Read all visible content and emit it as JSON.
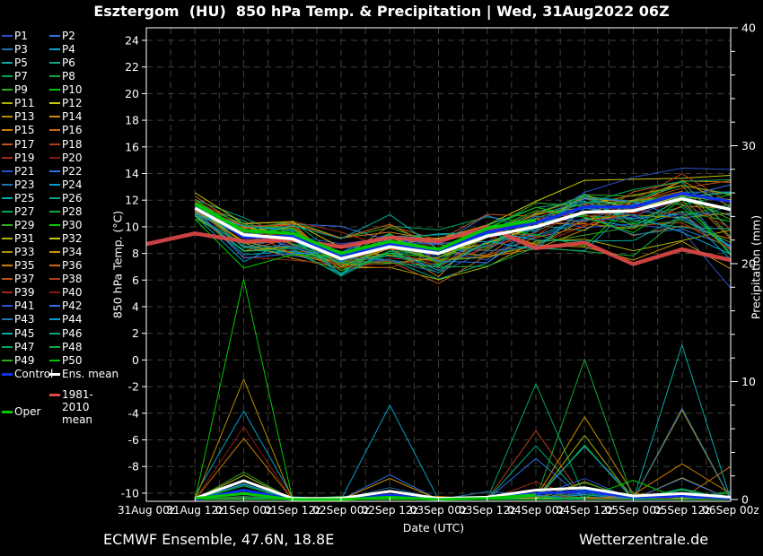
{
  "title": "Esztergom  (HU)  850 hPa Temp. & Precipitation | Wed, 31Aug2022 06Z",
  "footer": {
    "left": "ECMWF Ensemble, 47.6N, 18.8E",
    "right": "Wetterzentrale.de"
  },
  "axes": {
    "x_label": "Date (UTC)",
    "x_tick_hours": [
      0,
      12,
      24,
      36,
      48,
      60,
      72,
      84,
      96,
      108,
      120,
      132,
      144
    ],
    "x_tick_labels": [
      "31Aug 00z",
      "31Aug 12z",
      "01Sep 00z",
      "01Sep 12z",
      "02Sep 00z",
      "02Sep 12z",
      "03Sep 00z",
      "03Sep 12z",
      "04Sep 00z",
      "04Sep 12z",
      "05Sep 00z",
      "05Sep 12z",
      "06Sep 00z"
    ],
    "y_left_label": "850 hPa Temp. (°C)",
    "y_left_ticks": [
      24,
      22,
      20,
      18,
      16,
      14,
      12,
      10,
      8,
      6,
      4,
      2,
      0,
      -2,
      -4,
      -6,
      -8,
      -10
    ],
    "y_right_label": "Precipitation (mm)",
    "y_right_ticks": [
      40,
      30,
      20,
      10,
      0
    ],
    "y_right_minor_step": 2
  },
  "colors": {
    "background": "#000000",
    "text": "#ffffff",
    "grid": "#3f3f36",
    "frame": "#ffffff",
    "control": "#1030e8",
    "ens_mean": "#ffffff",
    "oper": "#00c800",
    "climate_mean": "#e04848"
  },
  "legend": {
    "member_labels": [
      "P1",
      "P2",
      "P3",
      "P4",
      "P5",
      "P6",
      "P7",
      "P8",
      "P9",
      "P10",
      "P11",
      "P12",
      "P13",
      "P14",
      "P15",
      "P16",
      "P17",
      "P18",
      "P19",
      "P20",
      "P21",
      "P22",
      "P23",
      "P24",
      "P25",
      "P26",
      "P27",
      "P28",
      "P29",
      "P30",
      "P31",
      "P32",
      "P33",
      "P34",
      "P35",
      "P36",
      "P37",
      "P38",
      "P39",
      "P40",
      "P41",
      "P42",
      "P43",
      "P44",
      "P45",
      "P46",
      "P47",
      "P48",
      "P49",
      "P50"
    ],
    "palette": [
      "#2b52c8",
      "#2e6fe8",
      "#1f74b4",
      "#00a0c8",
      "#00aca0",
      "#00aa80",
      "#00a65c",
      "#14a838",
      "#32aa20",
      "#00c800",
      "#aab400",
      "#c8c800",
      "#b28c00",
      "#c89000",
      "#cc7e00",
      "#c86a14",
      "#bd5614",
      "#b04018",
      "#a02814",
      "#881810"
    ],
    "special": [
      {
        "id": "control",
        "label": "Control"
      },
      {
        "id": "ens_mean",
        "label": "Ens. mean"
      },
      {
        "id": "climate_mean",
        "label": "1981-2010 mean"
      },
      {
        "id": "oper",
        "label": "Oper"
      }
    ]
  },
  "chart_data": {
    "type": "line",
    "x_hours": [
      12,
      24,
      36,
      48,
      60,
      72,
      84,
      96,
      108,
      120,
      132,
      144
    ],
    "x_axis_range_hours": [
      0,
      144
    ],
    "temp_axis_range": [
      -10,
      24
    ],
    "precip_axis_range": [
      0,
      40
    ],
    "grid": "dashed, every 6 h vertical, every 2 °C horizontal",
    "temp": {
      "ens_mean": [
        11.4,
        9.4,
        9.1,
        7.6,
        8.5,
        8.0,
        9.3,
        10.0,
        11.1,
        11.2,
        12.1,
        11.3
      ],
      "control": [
        11.6,
        9.2,
        9.3,
        7.8,
        8.7,
        8.2,
        9.6,
        10.3,
        11.5,
        11.5,
        12.5,
        11.9
      ],
      "oper": {
        "hours": [
          12,
          24,
          36,
          48,
          60,
          72,
          84,
          96
        ],
        "values": [
          11.7,
          9.7,
          9.5,
          8.0,
          8.9,
          8.3,
          9.9,
          10.5
        ]
      },
      "climate_mean": {
        "hours": [
          0,
          12,
          24,
          36,
          48,
          60,
          72,
          84,
          96,
          108,
          120,
          132,
          144
        ],
        "values": [
          8.7,
          9.5,
          8.9,
          9.0,
          8.5,
          9.2,
          8.9,
          10.0,
          8.4,
          8.8,
          7.2,
          8.3,
          7.5
        ]
      },
      "envelope_min": [
        10.6,
        7.0,
        7.2,
        5.8,
        6.4,
        5.7,
        6.5,
        7.4,
        8.0,
        7.6,
        9.0,
        5.5
      ],
      "envelope_max": [
        12.5,
        11.0,
        11.3,
        10.2,
        10.9,
        10.1,
        11.2,
        12.6,
        13.6,
        13.9,
        14.7,
        14.2
      ]
    },
    "precip": {
      "ens_mean": [
        0.1,
        1.6,
        0.1,
        0.1,
        0.7,
        0.1,
        0.2,
        0.8,
        1.0,
        0.3,
        0.5,
        0.2
      ],
      "control": [
        0.0,
        0.8,
        0.0,
        0.0,
        0.4,
        0.0,
        0.1,
        0.5,
        0.7,
        0.2,
        0.3,
        0.1
      ],
      "oper": {
        "hours": [
          12,
          24,
          36,
          48,
          60,
          72,
          84,
          96
        ],
        "values": [
          0.1,
          0.5,
          0.0,
          0.0,
          0.2,
          0.0,
          0.1,
          0.4
        ]
      },
      "envelope_max": [
        0.6,
        18.7,
        0.4,
        0.5,
        8.0,
        0.6,
        1.2,
        9.8,
        11.9,
        3.0,
        13.1,
        3.2
      ],
      "outlier_spikes": [
        {
          "member": 10,
          "hour": 24,
          "value": 18.7
        },
        {
          "member": 13,
          "hour": 24,
          "value": 10.2
        },
        {
          "member": 4,
          "hour": 24,
          "value": 7.5
        },
        {
          "member": 24,
          "hour": 60,
          "value": 8.0
        },
        {
          "member": 7,
          "hour": 96,
          "value": 9.8
        },
        {
          "member": 28,
          "hour": 108,
          "value": 11.9
        },
        {
          "member": 34,
          "hour": 108,
          "value": 7.0
        },
        {
          "member": 45,
          "hour": 132,
          "value": 13.1
        },
        {
          "member": 16,
          "hour": 144,
          "value": 2.8
        }
      ]
    },
    "members_seed": 7,
    "member_count": 50
  }
}
